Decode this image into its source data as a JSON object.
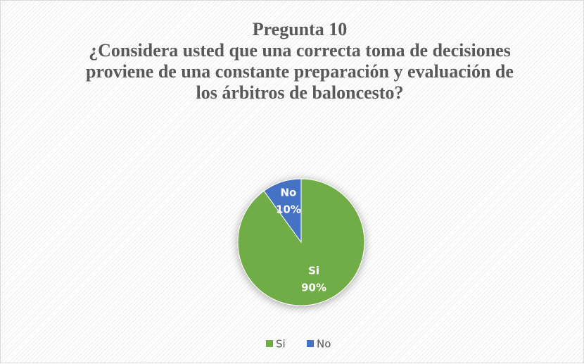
{
  "chart_data": {
    "type": "pie",
    "title": "Pregunta 10",
    "subtitle": "¿Considera usted que una correcta toma de decisiones proviene de una constante preparación y evaluación de los árbitros de baloncesto?",
    "categories": [
      "Si",
      "No"
    ],
    "values": [
      90,
      10
    ],
    "value_labels": [
      "90%",
      "10%"
    ],
    "colors": [
      "#70ad47",
      "#4472c4"
    ],
    "legend": "bottom"
  }
}
